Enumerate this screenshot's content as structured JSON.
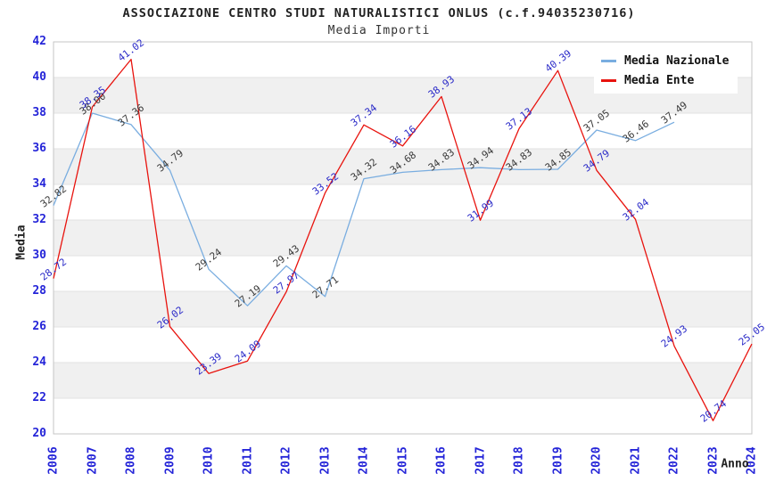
{
  "title": "ASSOCIAZIONE CENTRO STUDI NATURALISTICI ONLUS (c.f.94035230716)",
  "subtitle": "Media Importi",
  "legend": {
    "position": "top-right",
    "items": [
      "Media Nazionale",
      "Media Ente"
    ]
  },
  "colors": {
    "nazionale_line": "#79ade0",
    "ente_line": "#e8130e",
    "tick_label": "#2424d8",
    "nazionale_data_label": "#3a3a3a",
    "ente_data_label": "#2a2ac8",
    "band_gray": "#f0f0f0",
    "band_white": "#ffffff",
    "gridline": "#e2e2e2",
    "plot_border": "#c6c6c6"
  },
  "chart_data": {
    "type": "line",
    "title": "ASSOCIAZIONE CENTRO STUDI NATURALISTICI ONLUS (c.f.94035230716)",
    "subtitle": "Media Importi",
    "xlabel": "Anno",
    "ylabel": "Media",
    "ylim": [
      20,
      42
    ],
    "ytick_step": 2,
    "grid": "horizontal-bands",
    "legend_position": "top-right",
    "x": [
      2006,
      2007,
      2008,
      2009,
      2010,
      2011,
      2012,
      2013,
      2014,
      2015,
      2016,
      2017,
      2018,
      2019,
      2020,
      2021,
      2022,
      2023,
      2024
    ],
    "series": [
      {
        "name": "Media Nazionale",
        "color": "#79ade0",
        "label_color": "#3a3a3a",
        "values": [
          32.82,
          38.0,
          37.36,
          34.79,
          29.24,
          27.19,
          29.43,
          27.71,
          34.32,
          34.68,
          34.83,
          34.94,
          34.83,
          34.85,
          37.05,
          36.46,
          37.49,
          null,
          null
        ]
      },
      {
        "name": "Media Ente",
        "color": "#e8130e",
        "label_color": "#2a2ac8",
        "values": [
          28.72,
          38.35,
          41.02,
          26.02,
          23.39,
          24.09,
          27.97,
          33.52,
          37.34,
          36.16,
          38.93,
          31.99,
          37.13,
          40.39,
          34.79,
          32.04,
          24.93,
          20.74,
          25.05
        ]
      }
    ]
  }
}
